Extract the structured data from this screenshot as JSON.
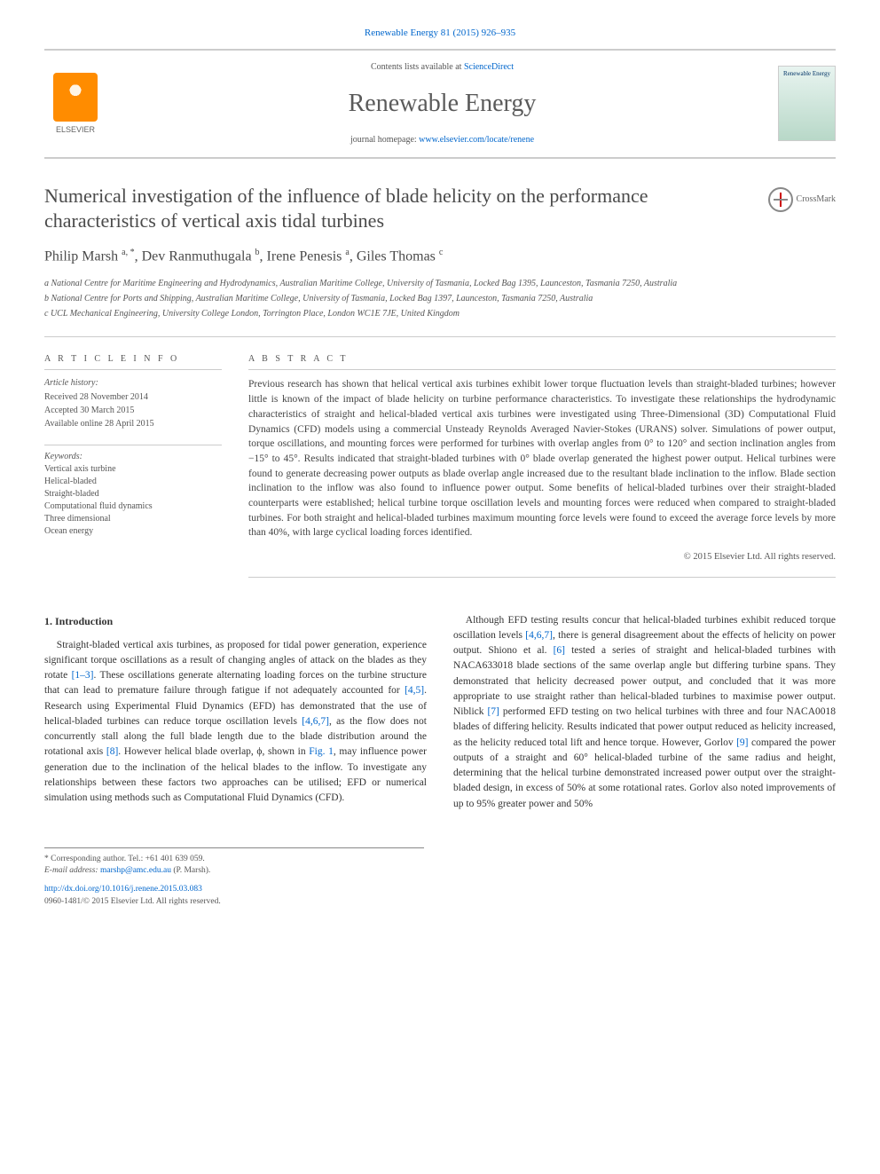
{
  "citation": "Renewable Energy 81 (2015) 926–935",
  "header": {
    "contents_prefix": "Contents lists available at ",
    "contents_link": "ScienceDirect",
    "journal_name": "Renewable Energy",
    "homepage_prefix": "journal homepage: ",
    "homepage_url": "www.elsevier.com/locate/renene",
    "publisher_label": "ELSEVIER",
    "cover_label": "Renewable Energy"
  },
  "title": "Numerical investigation of the influence of blade helicity on the performance characteristics of vertical axis tidal turbines",
  "crossmark_label": "CrossMark",
  "authors_html": "Philip Marsh <sup>a, *</sup>, Dev Ranmuthugala <sup>b</sup>, Irene Penesis <sup>a</sup>, Giles Thomas <sup>c</sup>",
  "affiliations": {
    "a": "a National Centre for Maritime Engineering and Hydrodynamics, Australian Maritime College, University of Tasmania, Locked Bag 1395, Launceston, Tasmania 7250, Australia",
    "b": "b National Centre for Ports and Shipping, Australian Maritime College, University of Tasmania, Locked Bag 1397, Launceston, Tasmania 7250, Australia",
    "c": "c UCL Mechanical Engineering, University College London, Torrington Place, London WC1E 7JE, United Kingdom"
  },
  "article_info": {
    "heading": "A R T I C L E   I N F O",
    "history_label": "Article history:",
    "received": "Received 28 November 2014",
    "accepted": "Accepted 30 March 2015",
    "online": "Available online 28 April 2015",
    "keywords_label": "Keywords:",
    "keywords": [
      "Vertical axis turbine",
      "Helical-bladed",
      "Straight-bladed",
      "Computational fluid dynamics",
      "Three dimensional",
      "Ocean energy"
    ]
  },
  "abstract": {
    "heading": "A B S T R A C T",
    "body": "Previous research has shown that helical vertical axis turbines exhibit lower torque fluctuation levels than straight-bladed turbines; however little is known of the impact of blade helicity on turbine performance characteristics. To investigate these relationships the hydrodynamic characteristics of straight and helical-bladed vertical axis turbines were investigated using Three-Dimensional (3D) Computational Fluid Dynamics (CFD) models using a commercial Unsteady Reynolds Averaged Navier-Stokes (URANS) solver. Simulations of power output, torque oscillations, and mounting forces were performed for turbines with overlap angles from 0° to 120° and section inclination angles from −15° to 45°. Results indicated that straight-bladed turbines with 0° blade overlap generated the highest power output. Helical turbines were found to generate decreasing power outputs as blade overlap angle increased due to the resultant blade inclination to the inflow. Blade section inclination to the inflow was also found to influence power output. Some benefits of helical-bladed turbines over their straight-bladed counterparts were established; helical turbine torque oscillation levels and mounting forces were reduced when compared to straight-bladed turbines. For both straight and helical-bladed turbines maximum mounting force levels were found to exceed the average force levels by more than 40%, with large cyclical loading forces identified.",
    "copyright": "© 2015 Elsevier Ltd. All rights reserved."
  },
  "intro": {
    "heading": "1. Introduction",
    "p1_a": "Straight-bladed vertical axis turbines, as proposed for tidal power generation, experience significant torque oscillations as a result of changing angles of attack on the blades as they rotate ",
    "ref1": "[1–3]",
    "p1_b": ". These oscillations generate alternating loading forces on the turbine structure that can lead to premature failure through fatigue if not adequately accounted for ",
    "ref2": "[4,5]",
    "p1_c": ". Research using Experimental Fluid Dynamics (EFD) has demonstrated that the use of helical-bladed turbines can reduce torque oscillation levels ",
    "ref3": "[4,6,7]",
    "p1_d": ", as the flow does not concurrently stall along the full blade length due to the blade distribution around the rotational axis ",
    "ref4": "[8]",
    "p1_e": ". However helical blade overlap, ϕ, shown in ",
    "fig1": "Fig. 1",
    "p1_f": ", may influence power generation due to the inclination of the helical blades to the inflow. To investigate any relationships between these factors two approaches can be utilised; EFD or numerical simulation using methods such as Computational Fluid Dynamics (CFD).",
    "p2_a": "Although EFD testing results concur that helical-bladed turbines exhibit reduced torque oscillation levels ",
    "ref5": "[4,6,7]",
    "p2_b": ", there is general disagreement about the effects of helicity on power output. Shiono et al. ",
    "ref6": "[6]",
    "p2_c": " tested a series of straight and helical-bladed turbines with NACA633018 blade sections of the same overlap angle but differing turbine spans. They demonstrated that helicity decreased power output, and concluded that it was more appropriate to use straight rather than helical-bladed turbines to maximise power output. Niblick ",
    "ref7": "[7]",
    "p2_d": " performed EFD testing on two helical turbines with three and four NACA0018 blades of differing helicity. Results indicated that power output reduced as helicity increased, as the helicity reduced total lift and hence torque. However, Gorlov ",
    "ref8": "[9]",
    "p2_e": " compared the power outputs of a straight and 60° helical-bladed turbine of the same radius and height, determining that the helical turbine demonstrated increased power output over the straight-bladed design, in excess of 50% at some rotational rates. Gorlov also noted improvements of up to 95% greater power and 50%"
  },
  "corresponding": {
    "label": "* Corresponding author. Tel.: +61 401 639 059.",
    "email_label": "E-mail address: ",
    "email": "marshp@amc.edu.au",
    "email_suffix": " (P. Marsh)."
  },
  "footer": {
    "doi": "http://dx.doi.org/10.1016/j.renene.2015.03.083",
    "issn_copyright": "0960-1481/© 2015 Elsevier Ltd. All rights reserved."
  },
  "colors": {
    "link": "#0066cc",
    "text": "#333333",
    "muted": "#555555",
    "rule": "#cccccc",
    "elsevier_orange": "#ff8c00"
  },
  "typography": {
    "title_fontsize_pt": 22,
    "journal_fontsize_pt": 28,
    "body_fontsize_pt": 11.5,
    "meta_fontsize_pt": 10,
    "author_fontsize_pt": 16
  }
}
